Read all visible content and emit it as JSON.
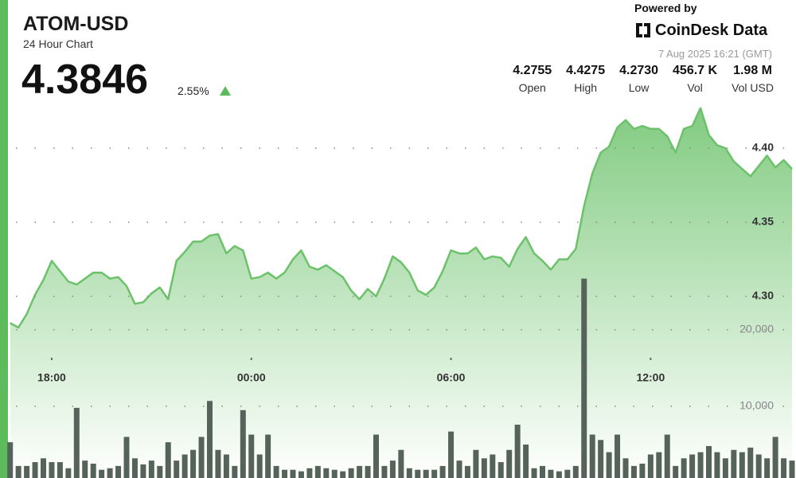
{
  "header": {
    "symbol": "ATOM-USD",
    "subtitle": "24 Hour Chart",
    "price": "4.3846",
    "change": "2.55%",
    "powered_by": "Powered by",
    "brand": "CoinDesk Data",
    "timestamp": "7 Aug 2025 16:21 (GMT)",
    "stats": [
      {
        "value": "4.2755",
        "label": "Open"
      },
      {
        "value": "4.4275",
        "label": "High"
      },
      {
        "value": "4.2730",
        "label": "Low"
      },
      {
        "value": "456.7 K",
        "label": "Vol"
      },
      {
        "value": "1.98 M",
        "label": "Vol USD"
      }
    ]
  },
  "chart_data": {
    "type": "line",
    "x": [
      "16:45",
      "17:00",
      "17:15",
      "17:30",
      "17:45",
      "18:00",
      "18:15",
      "18:30",
      "18:45",
      "19:00",
      "19:15",
      "19:30",
      "19:45",
      "20:00",
      "20:15",
      "20:30",
      "20:45",
      "21:00",
      "21:15",
      "21:30",
      "21:45",
      "22:00",
      "22:15",
      "22:30",
      "22:45",
      "23:00",
      "23:15",
      "23:30",
      "23:45",
      "00:00",
      "00:15",
      "00:30",
      "00:45",
      "01:00",
      "01:15",
      "01:30",
      "01:45",
      "02:00",
      "02:15",
      "02:30",
      "02:45",
      "03:00",
      "03:15",
      "03:30",
      "03:45",
      "04:00",
      "04:15",
      "04:30",
      "04:45",
      "05:00",
      "05:15",
      "05:30",
      "05:45",
      "06:00",
      "06:15",
      "06:30",
      "06:45",
      "07:00",
      "07:15",
      "07:30",
      "07:45",
      "08:00",
      "08:15",
      "08:30",
      "08:45",
      "09:00",
      "09:15",
      "09:30",
      "09:45",
      "10:00",
      "10:15",
      "10:30",
      "10:45",
      "11:00",
      "11:15",
      "11:30",
      "11:45",
      "12:00",
      "12:15",
      "12:30",
      "12:45",
      "13:00",
      "13:15",
      "13:30",
      "13:45",
      "14:00",
      "14:15",
      "14:30",
      "14:45",
      "15:00",
      "15:15",
      "15:30",
      "15:45",
      "16:00",
      "16:15"
    ],
    "xticks": [
      "18:00",
      "00:00",
      "06:00",
      "12:00"
    ],
    "series": [
      {
        "color": "#6cc26b",
        "values": [
          4.282,
          4.279,
          4.288,
          4.301,
          4.311,
          4.324,
          4.317,
          4.31,
          4.308,
          4.312,
          4.316,
          4.316,
          4.312,
          4.313,
          4.307,
          4.295,
          4.296,
          4.302,
          4.306,
          4.298,
          4.324,
          4.33,
          4.337,
          4.337,
          4.341,
          4.342,
          4.329,
          4.334,
          4.331,
          4.312,
          4.313,
          4.316,
          4.312,
          4.316,
          4.325,
          4.331,
          4.32,
          4.318,
          4.321,
          4.317,
          4.313,
          4.304,
          4.298,
          4.305,
          4.3,
          4.312,
          4.327,
          4.323,
          4.316,
          4.304,
          4.301,
          4.306,
          4.317,
          4.331,
          4.329,
          4.329,
          4.333,
          4.325,
          4.327,
          4.326,
          4.32,
          4.332,
          4.34,
          4.329,
          4.324,
          4.318,
          4.325,
          4.325,
          4.332,
          4.361,
          4.383,
          4.397,
          4.401,
          4.414,
          4.419,
          4.413,
          4.415,
          4.413,
          4.413,
          4.408,
          4.397,
          4.413,
          4.415,
          4.427,
          4.409,
          4.402,
          4.4,
          4.391,
          4.386,
          4.381,
          4.388,
          4.395,
          4.387,
          4.392,
          4.386
        ]
      },
      {
        "type": "bar",
        "axis": "y2",
        "color": "#56635a",
        "values": [
          5300,
          2200,
          2200,
          2700,
          3200,
          2700,
          2700,
          1900,
          9800,
          2900,
          2500,
          1700,
          1900,
          2200,
          6000,
          3200,
          2400,
          2900,
          2200,
          5300,
          2900,
          3700,
          4300,
          6000,
          10700,
          4300,
          3700,
          2200,
          9500,
          6300,
          3700,
          6300,
          2200,
          1700,
          1700,
          1500,
          1900,
          2200,
          1900,
          1700,
          1500,
          1900,
          2200,
          2200,
          6300,
          2200,
          2900,
          4300,
          1900,
          1700,
          1700,
          1700,
          2200,
          6700,
          2900,
          2200,
          4300,
          3200,
          3700,
          2700,
          4300,
          7600,
          5000,
          1900,
          2200,
          1700,
          1500,
          1700,
          2200,
          26700,
          6300,
          5600,
          4000,
          6300,
          3200,
          2200,
          2500,
          3700,
          4000,
          6300,
          2200,
          3200,
          3700,
          4000,
          4800,
          4000,
          3200,
          4300,
          4000,
          4600,
          3700,
          3200,
          6000,
          3200,
          2900
        ]
      }
    ],
    "ylim": [
      4.27,
      4.44
    ],
    "yticks": [
      {
        "value": 4.3,
        "label": "4.30"
      },
      4.35,
      {
        "value": 4.4,
        "label": "4.40"
      }
    ],
    "y2lim": [
      0,
      27000
    ],
    "y2ticks": [
      {
        "value": 10000,
        "label": "10,000"
      },
      {
        "value": 20000,
        "label": "20,000"
      }
    ],
    "grid": true
  }
}
